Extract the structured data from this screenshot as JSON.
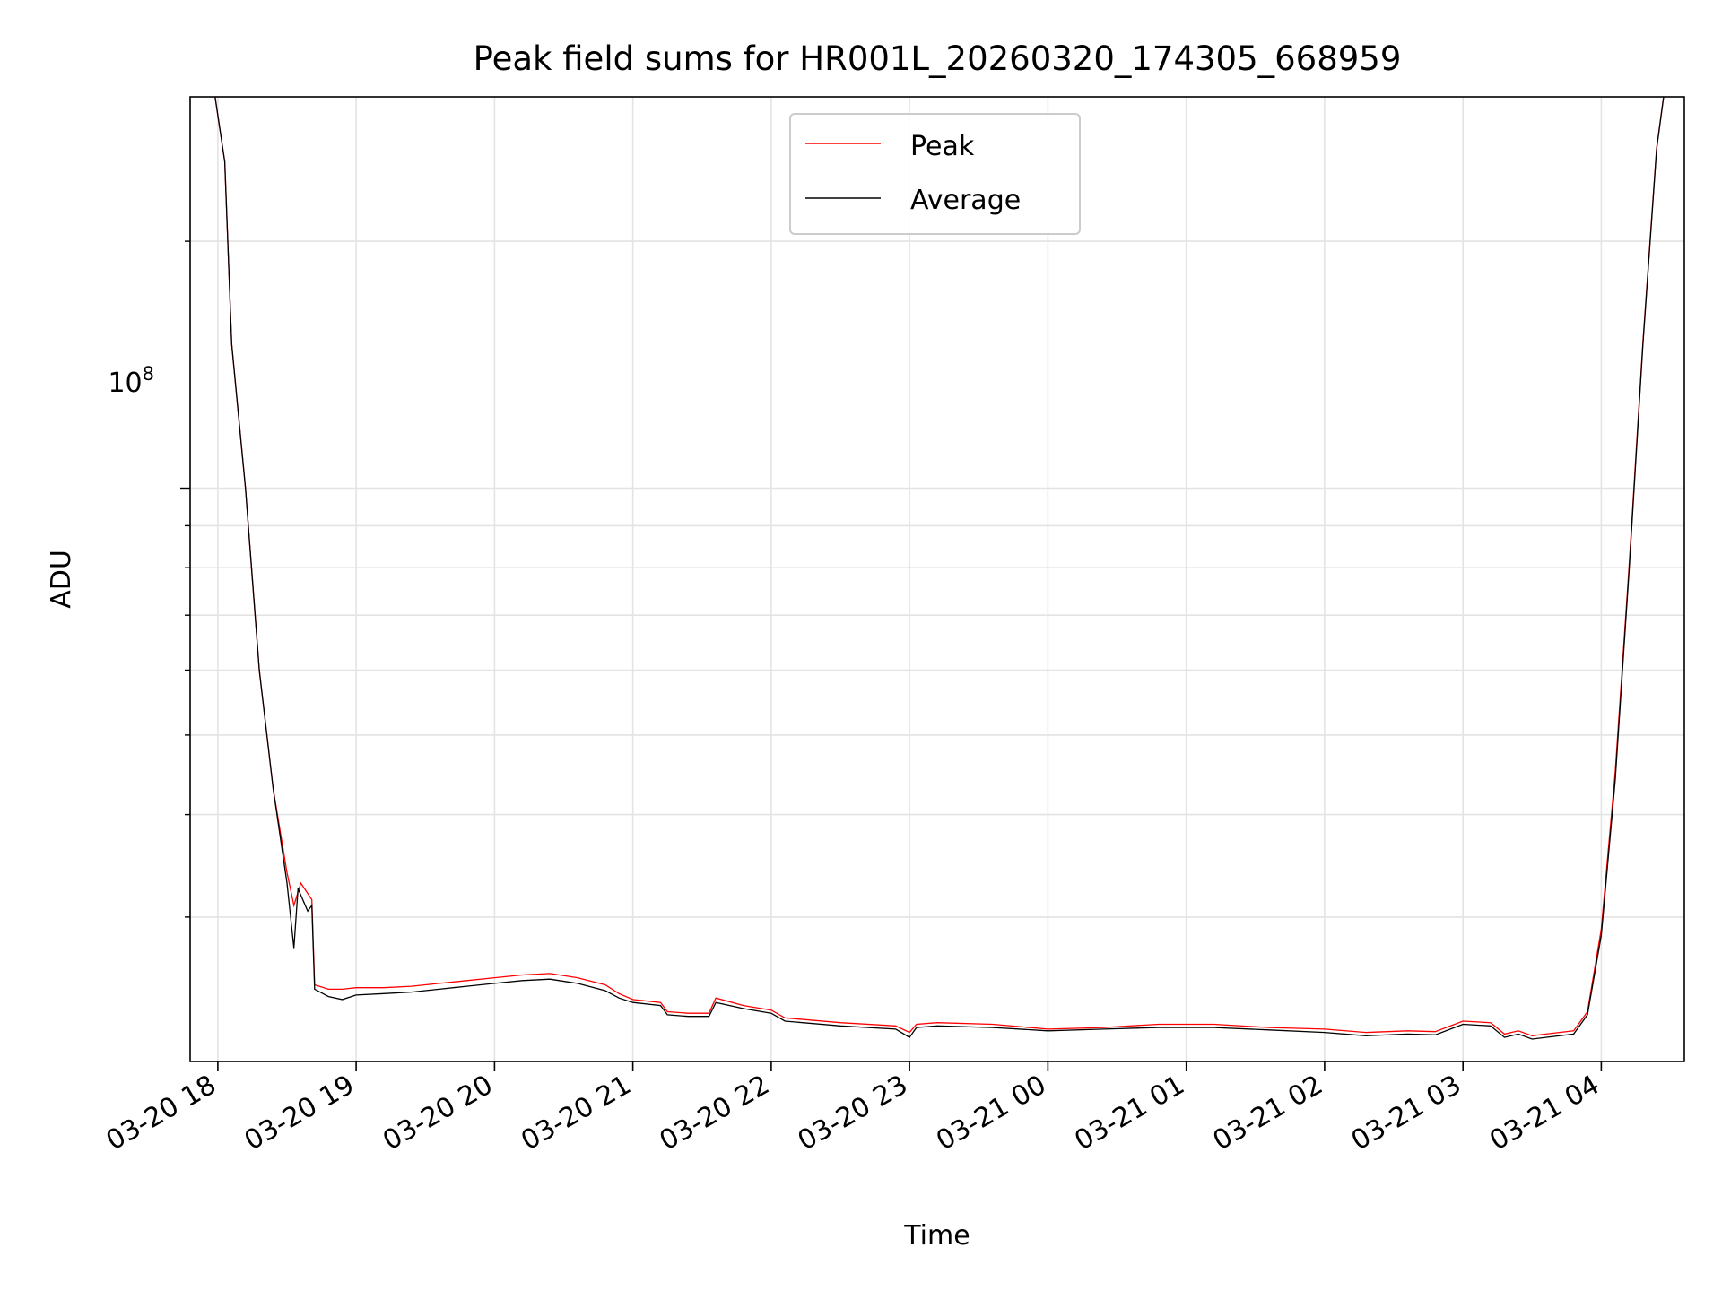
{
  "chart_data": {
    "type": "line",
    "title": "Peak field sums for HR001L_20260320_174305_668959",
    "xlabel": "Time",
    "ylabel": "ADU",
    "yscale": "log",
    "ylim": [
      20000000,
      300000000
    ],
    "y_major_tick": {
      "value": 100000000,
      "label_base": "10",
      "label_exp": "8"
    },
    "y_minor_ticks": [
      30000000,
      40000000,
      50000000,
      60000000,
      70000000,
      80000000,
      90000000,
      200000000
    ],
    "xlim_hours": [
      -0.2,
      10.6
    ],
    "x_tick_labels": [
      "03-20 18",
      "03-20 19",
      "03-20 20",
      "03-20 21",
      "03-20 22",
      "03-20 23",
      "03-21 00",
      "03-21 01",
      "03-21 02",
      "03-21 03",
      "03-21 04"
    ],
    "x_tick_hours": [
      0,
      1,
      2,
      3,
      4,
      5,
      6,
      7,
      8,
      9,
      10
    ],
    "grid": true,
    "legend": {
      "position": "upper-center",
      "entries": [
        "Peak",
        "Average"
      ]
    },
    "series": [
      {
        "name": "Peak",
        "color": "#ff0000",
        "points": [
          [
            -0.02,
            300000000
          ],
          [
            0.05,
            250000000
          ],
          [
            0.1,
            150000000
          ],
          [
            0.2,
            100000000
          ],
          [
            0.3,
            60000000
          ],
          [
            0.4,
            43000000
          ],
          [
            0.5,
            34000000
          ],
          [
            0.55,
            31000000
          ],
          [
            0.6,
            33000000
          ],
          [
            0.68,
            31500000
          ],
          [
            0.7,
            24800000
          ],
          [
            0.8,
            24500000
          ],
          [
            0.9,
            24500000
          ],
          [
            1.0,
            24600000
          ],
          [
            1.2,
            24600000
          ],
          [
            1.4,
            24700000
          ],
          [
            1.6,
            24900000
          ],
          [
            1.8,
            25100000
          ],
          [
            2.0,
            25300000
          ],
          [
            2.2,
            25500000
          ],
          [
            2.4,
            25600000
          ],
          [
            2.6,
            25300000
          ],
          [
            2.8,
            24800000
          ],
          [
            2.9,
            24200000
          ],
          [
            3.0,
            23800000
          ],
          [
            3.2,
            23600000
          ],
          [
            3.25,
            23000000
          ],
          [
            3.4,
            22900000
          ],
          [
            3.55,
            22900000
          ],
          [
            3.6,
            23900000
          ],
          [
            3.8,
            23400000
          ],
          [
            4.0,
            23100000
          ],
          [
            4.1,
            22600000
          ],
          [
            4.5,
            22300000
          ],
          [
            4.9,
            22100000
          ],
          [
            5.0,
            21700000
          ],
          [
            5.05,
            22200000
          ],
          [
            5.2,
            22300000
          ],
          [
            5.6,
            22200000
          ],
          [
            6.0,
            21900000
          ],
          [
            6.4,
            22000000
          ],
          [
            6.8,
            22200000
          ],
          [
            7.2,
            22200000
          ],
          [
            7.6,
            22000000
          ],
          [
            8.0,
            21900000
          ],
          [
            8.3,
            21700000
          ],
          [
            8.6,
            21800000
          ],
          [
            8.8,
            21750000
          ],
          [
            9.0,
            22400000
          ],
          [
            9.2,
            22300000
          ],
          [
            9.3,
            21600000
          ],
          [
            9.4,
            21800000
          ],
          [
            9.5,
            21500000
          ],
          [
            9.6,
            21600000
          ],
          [
            9.8,
            21800000
          ],
          [
            9.9,
            23000000
          ],
          [
            10.0,
            29000000
          ],
          [
            10.1,
            45000000
          ],
          [
            10.2,
            80000000
          ],
          [
            10.3,
            150000000
          ],
          [
            10.4,
            260000000
          ],
          [
            10.45,
            300000000
          ]
        ]
      },
      {
        "name": "Average",
        "color": "#000000",
        "points": [
          [
            -0.02,
            300000000
          ],
          [
            0.05,
            250000000
          ],
          [
            0.1,
            150000000
          ],
          [
            0.2,
            100000000
          ],
          [
            0.3,
            60000000
          ],
          [
            0.4,
            43000000
          ],
          [
            0.5,
            33000000
          ],
          [
            0.55,
            27500000
          ],
          [
            0.58,
            32500000
          ],
          [
            0.65,
            30500000
          ],
          [
            0.68,
            31000000
          ],
          [
            0.7,
            24500000
          ],
          [
            0.8,
            24000000
          ],
          [
            0.9,
            23800000
          ],
          [
            1.0,
            24100000
          ],
          [
            1.2,
            24200000
          ],
          [
            1.4,
            24300000
          ],
          [
            1.6,
            24500000
          ],
          [
            1.8,
            24700000
          ],
          [
            2.0,
            24900000
          ],
          [
            2.2,
            25100000
          ],
          [
            2.4,
            25200000
          ],
          [
            2.6,
            24900000
          ],
          [
            2.8,
            24400000
          ],
          [
            2.9,
            23900000
          ],
          [
            3.0,
            23600000
          ],
          [
            3.2,
            23400000
          ],
          [
            3.25,
            22800000
          ],
          [
            3.4,
            22700000
          ],
          [
            3.55,
            22700000
          ],
          [
            3.6,
            23600000
          ],
          [
            3.8,
            23200000
          ],
          [
            4.0,
            22900000
          ],
          [
            4.1,
            22400000
          ],
          [
            4.5,
            22100000
          ],
          [
            4.9,
            21900000
          ],
          [
            5.0,
            21400000
          ],
          [
            5.05,
            22000000
          ],
          [
            5.2,
            22100000
          ],
          [
            5.6,
            22000000
          ],
          [
            6.0,
            21800000
          ],
          [
            6.4,
            21900000
          ],
          [
            6.8,
            22000000
          ],
          [
            7.2,
            22000000
          ],
          [
            7.6,
            21850000
          ],
          [
            8.0,
            21700000
          ],
          [
            8.3,
            21500000
          ],
          [
            8.6,
            21600000
          ],
          [
            8.8,
            21550000
          ],
          [
            9.0,
            22200000
          ],
          [
            9.2,
            22100000
          ],
          [
            9.3,
            21400000
          ],
          [
            9.4,
            21600000
          ],
          [
            9.5,
            21300000
          ],
          [
            9.6,
            21400000
          ],
          [
            9.8,
            21600000
          ],
          [
            9.9,
            22800000
          ],
          [
            10.0,
            28500000
          ],
          [
            10.1,
            44000000
          ],
          [
            10.2,
            79000000
          ],
          [
            10.3,
            149000000
          ],
          [
            10.4,
            259000000
          ],
          [
            10.45,
            300000000
          ]
        ]
      }
    ]
  }
}
